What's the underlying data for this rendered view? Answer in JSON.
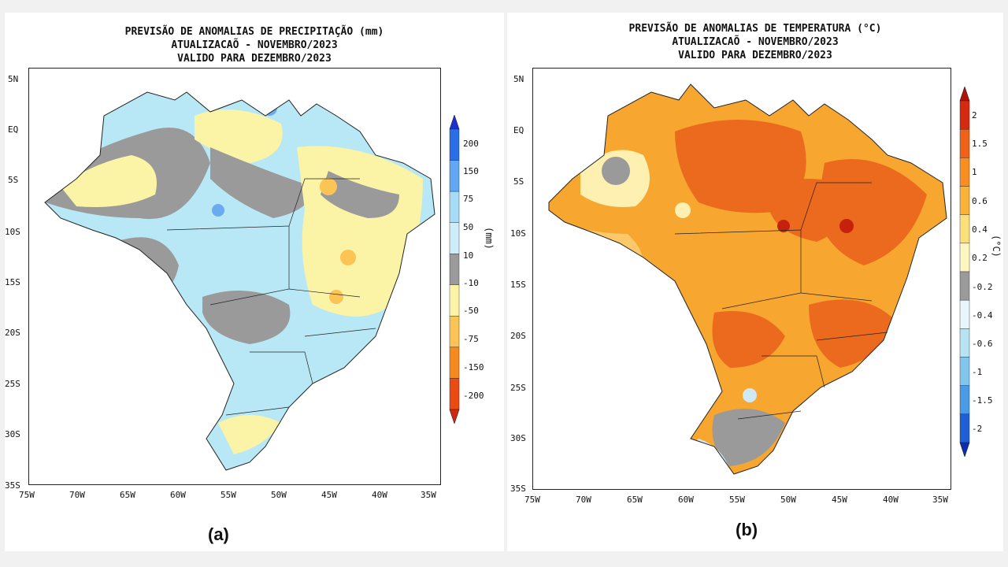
{
  "panels": [
    {
      "id": "a",
      "title_lines": [
        "PREVISÃO DE ANOMALIAS DE PRECIPITAÇÃO (mm)",
        "ATUALIZACAÕ - NOVEMBRO/2023",
        "VALIDO PARA DEZEMBRO/2023"
      ],
      "unit": "(mm)",
      "panel_label": "(a)",
      "colorbar_labels": [
        "200",
        "150",
        "75",
        "50",
        "10",
        "-10",
        "-50",
        "-75",
        "-150",
        "-200"
      ],
      "colorbar_colors": [
        "#1d2fd6",
        "#2a6fe8",
        "#62a7f3",
        "#a6dcf6",
        "#cdeef8",
        "#9a9a9a",
        "#fbf3a6",
        "#fbc455",
        "#f68a1e",
        "#ea4b12",
        "#d6250d"
      ]
    },
    {
      "id": "b",
      "title_lines": [
        "PREVISÃO DE ANOMALIAS DE TEMPERATURA (°C)",
        "ATUALIZACAÕ - NOVEMBRO/2023",
        "VALIDO PARA DEZEMBRO/2023"
      ],
      "unit": "(°C)",
      "panel_label": "(b)",
      "colorbar_labels": [
        "2",
        "1.5",
        "1",
        "0.6",
        "0.4",
        "0.2",
        "-0.2",
        "-0.4",
        "-0.6",
        "-1",
        "-1.5",
        "-2"
      ],
      "colorbar_colors": [
        "#b0120a",
        "#d62a10",
        "#f0621a",
        "#f98f22",
        "#fbb23a",
        "#fbe07a",
        "#fdf6c0",
        "#9a9a9a",
        "#e6f6fb",
        "#b7e3f3",
        "#80c6ef",
        "#4a9ae6",
        "#1f5fd6",
        "#0b2fae"
      ]
    }
  ],
  "axes": {
    "lat_labels": [
      "5N",
      "EQ",
      "5S",
      "10S",
      "15S",
      "20S",
      "25S",
      "30S",
      "35S"
    ],
    "lon_labels": [
      "75W",
      "70W",
      "65W",
      "60W",
      "55W",
      "50W",
      "45W",
      "40W",
      "35W"
    ]
  },
  "map_style": {
    "precip_base": "#b8e8f5",
    "precip_gray": "#9a9a9a",
    "precip_yellow": "#fbf3a6",
    "precip_orange": "#fbc455",
    "precip_blue": "#6aaaf0",
    "temp_base": "#f7a630",
    "temp_dark": "#ec6a1e",
    "temp_light": "#fbc86a",
    "temp_pale": "#fdf0b0",
    "temp_gray": "#9a9a9a",
    "temp_blue": "#cfe9f5",
    "temp_red": "#c5210c"
  }
}
